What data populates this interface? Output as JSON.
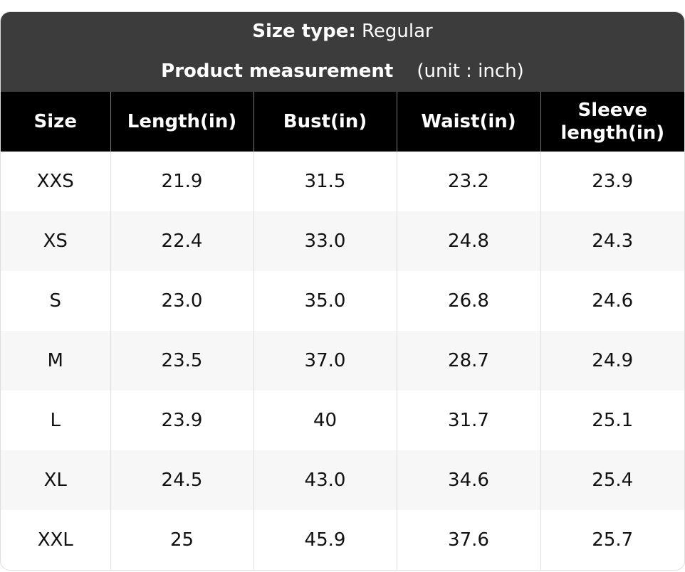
{
  "header": {
    "size_type_label": "Size type:",
    "size_type_value": "Regular",
    "measurement_label": "Product measurement",
    "unit": "(unit : inch)"
  },
  "table": {
    "columns": [
      "Size",
      "Length(in)",
      "Bust(in)",
      "Waist(in)",
      "Sleeve length(in)"
    ],
    "rows": [
      [
        "XXS",
        "21.9",
        "31.5",
        "23.2",
        "23.9"
      ],
      [
        "XS",
        "22.4",
        "33.0",
        "24.8",
        "24.3"
      ],
      [
        "S",
        "23.0",
        "35.0",
        "26.8",
        "24.6"
      ],
      [
        "M",
        "23.5",
        "37.0",
        "28.7",
        "24.9"
      ],
      [
        "L",
        "23.9",
        "40",
        "31.7",
        "25.1"
      ],
      [
        "XL",
        "24.5",
        "43.0",
        "34.6",
        "25.4"
      ],
      [
        "XXL",
        "25",
        "45.9",
        "37.6",
        "25.7"
      ]
    ]
  }
}
